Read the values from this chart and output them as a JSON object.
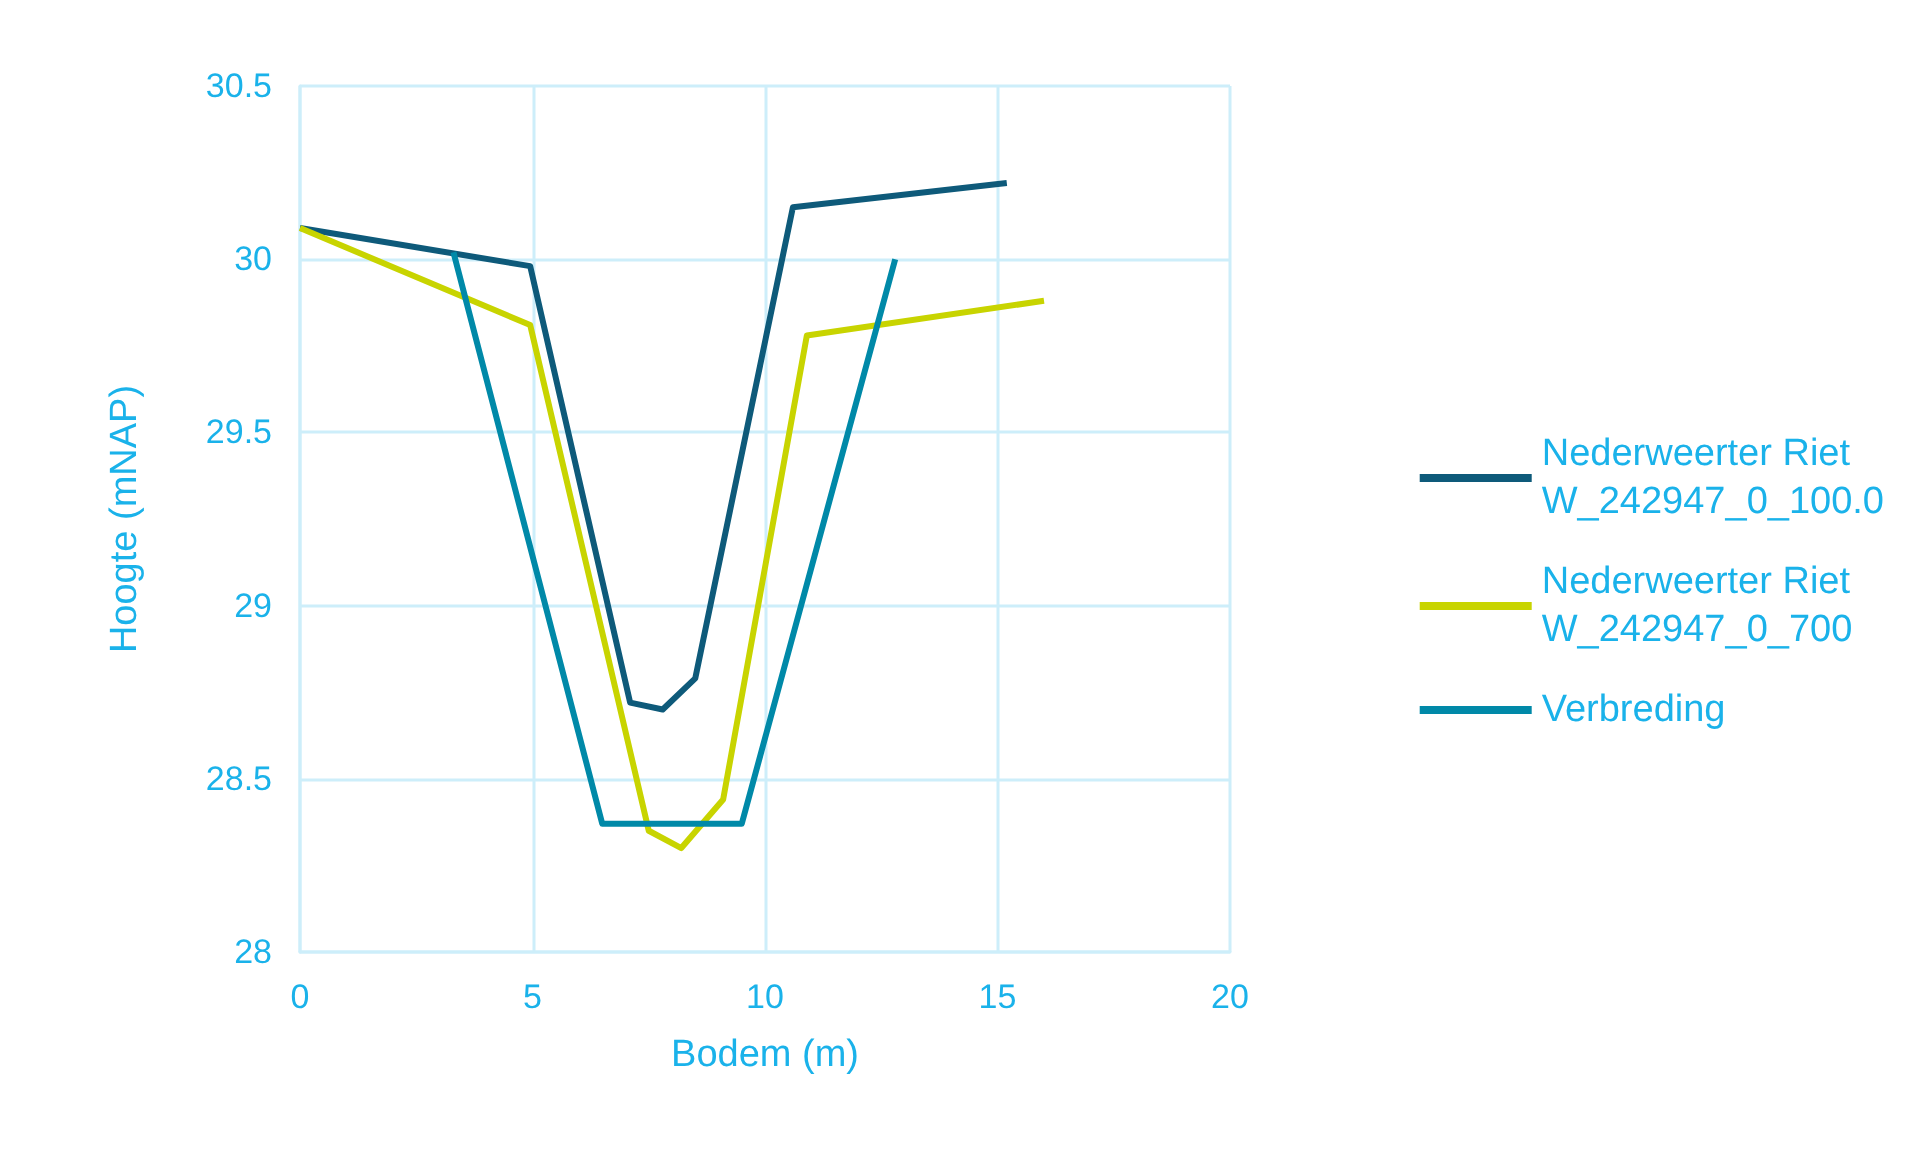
{
  "chart_data": {
    "type": "line",
    "xlabel": "Bodem (m)",
    "ylabel": "Hoogte (mNAP)",
    "xlim": [
      0,
      20
    ],
    "xticks": [
      0,
      5,
      10,
      15,
      20
    ],
    "ylim": [
      28,
      30.5
    ],
    "yticks": [
      28,
      28.5,
      29,
      29.5,
      30,
      30.5
    ],
    "grid": true,
    "legend": "right",
    "marker": "none",
    "series": [
      {
        "name": "Nederweerter Riet\nW_242947_0_100.0",
        "color": "#0e5a7a",
        "x": [
          0,
          4.95,
          7.1,
          7.8,
          8.5,
          10.6,
          15.2
        ],
        "values": [
          30.09,
          29.98,
          28.72,
          28.7,
          28.79,
          30.15,
          30.22
        ]
      },
      {
        "name": "Nederweerter Riet\nW_242947_0_700",
        "color": "#c8d400",
        "x": [
          0,
          4.95,
          7.5,
          8.2,
          9.1,
          10.9,
          16
        ],
        "values": [
          30.09,
          29.81,
          28.35,
          28.3,
          28.44,
          29.78,
          29.88
        ]
      },
      {
        "name": "Verbreding",
        "color": "#0089a8",
        "x": [
          3.3,
          6.5,
          9.5,
          12.8
        ],
        "values": [
          30.02,
          28.37,
          28.37,
          30
        ]
      }
    ]
  }
}
